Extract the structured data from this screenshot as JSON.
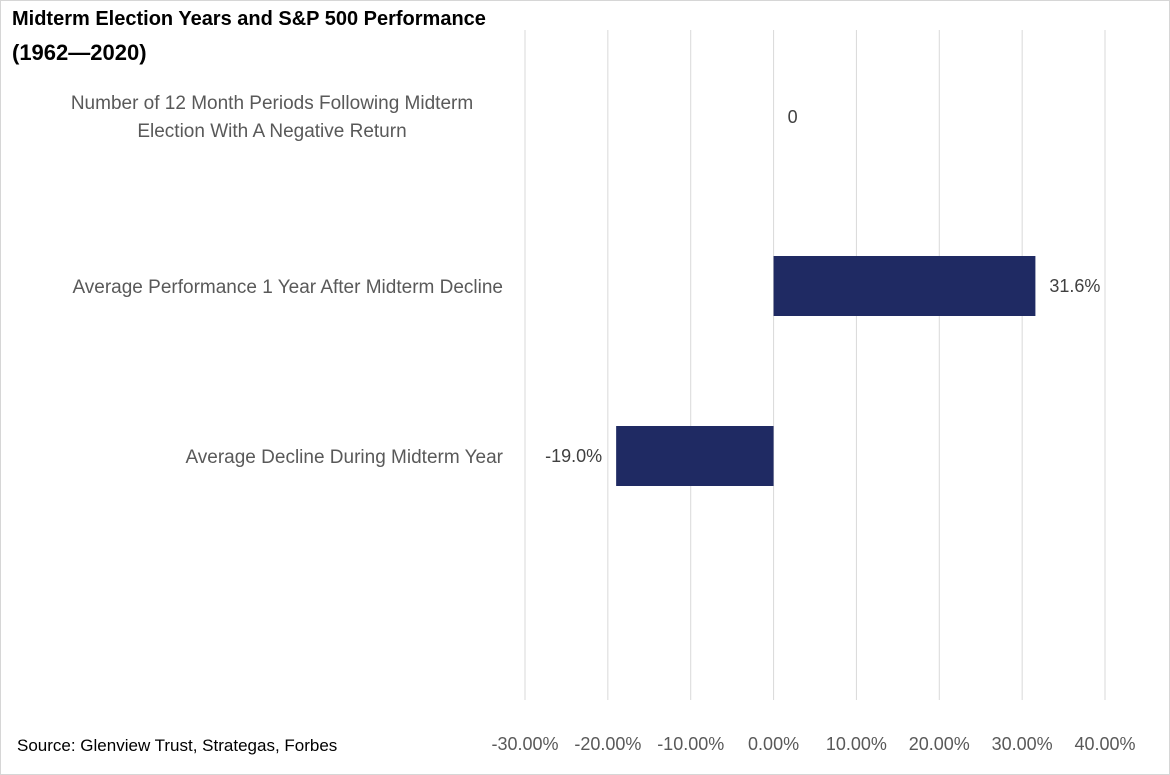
{
  "chart_data": {
    "type": "bar",
    "orientation": "horizontal",
    "title": "Midterm Election Years and S&P 500 Performance",
    "subtitle": "(1962—2020)",
    "categories": [
      [
        "Number of 12 Month Periods Following Midterm",
        "Election With A Negative Return"
      ],
      [
        "Average Performance 1 Year After Midterm Decline"
      ],
      [
        "Average Decline During Midterm Year"
      ]
    ],
    "values": [
      0,
      31.6,
      -19.0
    ],
    "data_labels": [
      "0",
      "31.6%",
      "-19.0%"
    ],
    "xlim": [
      -30,
      40
    ],
    "xticks": [
      -30,
      -20,
      -10,
      0,
      10,
      20,
      30,
      40
    ],
    "xtick_labels": [
      "-30.00%",
      "-20.00%",
      "-10.00%",
      "0.00%",
      "10.00%",
      "20.00%",
      "30.00%",
      "40.00%"
    ],
    "grid": "vertical",
    "bar_color": "#1f2a63",
    "source": "Source: Glenview Trust, Strategas, Forbes"
  }
}
